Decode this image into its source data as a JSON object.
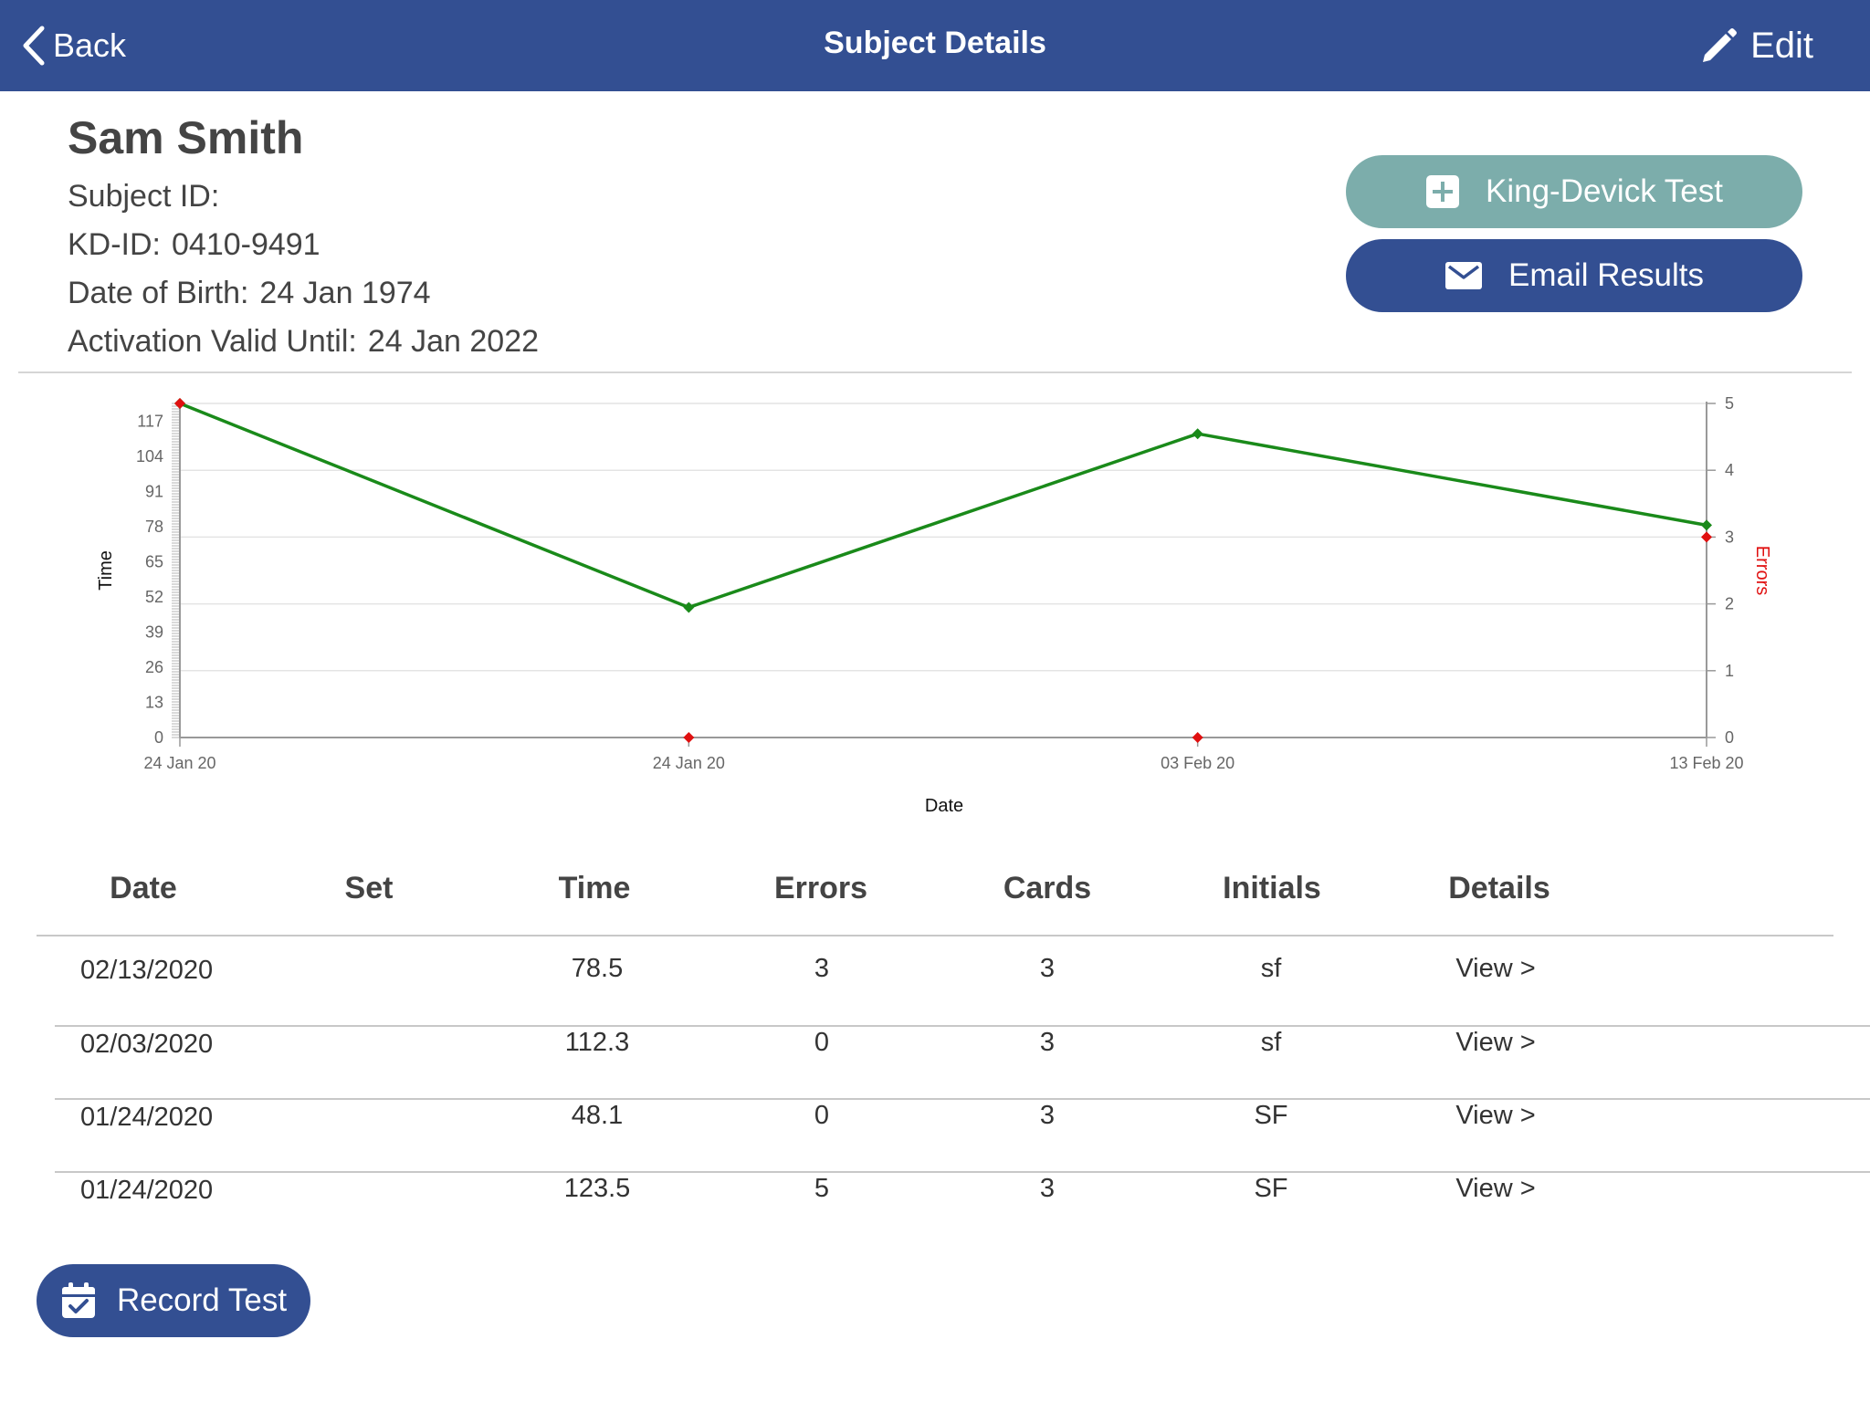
{
  "navbar": {
    "back_label": "Back",
    "title": "Subject Details",
    "edit_label": "Edit",
    "bg_color": "#334f92"
  },
  "subject": {
    "name": "Sam Smith",
    "subject_id_label": "Subject ID:",
    "subject_id_value": "",
    "kd_id_label": "KD-ID:",
    "kd_id_value": "0410-9491",
    "dob_label": "Date of Birth:",
    "dob_value": "24 Jan 1974",
    "activation_label": "Activation Valid Until:",
    "activation_value": "24 Jan 2022"
  },
  "actions": {
    "king_devick_label": "King-Devick Test",
    "email_label": "Email Results",
    "record_label": "Record Test"
  },
  "chart_data": {
    "type": "line",
    "xlabel": "Date",
    "ylabel": "Time",
    "y2label": "Errors",
    "x_tick_labels": [
      "24 Jan 20",
      "24 Jan 20",
      "03 Feb 20",
      "13 Feb 20"
    ],
    "y_ticks": [
      0,
      13,
      26,
      39,
      52,
      65,
      78,
      91,
      104,
      117
    ],
    "y_range": [
      0,
      123.5
    ],
    "y2_ticks": [
      0,
      1,
      2,
      3,
      4,
      5
    ],
    "y2_range": [
      0,
      5
    ],
    "grid": true,
    "series": [
      {
        "name": "Time",
        "axis": "left",
        "color": "#1a8a1a",
        "values": [
          123.5,
          48.1,
          112.3,
          78.5
        ]
      },
      {
        "name": "Errors",
        "axis": "right",
        "color": "#e01010",
        "values": [
          5,
          0,
          0,
          3
        ]
      }
    ]
  },
  "table": {
    "headers": [
      "Date",
      "Set",
      "Time",
      "Errors",
      "Cards",
      "Initials",
      "Details"
    ],
    "rows": [
      {
        "date": "02/13/2020",
        "set": "",
        "time": "78.5",
        "errors": "3",
        "cards": "3",
        "initials": "sf",
        "details": "View >"
      },
      {
        "date": "02/03/2020",
        "set": "",
        "time": "112.3",
        "errors": "0",
        "cards": "3",
        "initials": "sf",
        "details": "View >"
      },
      {
        "date": "01/24/2020",
        "set": "",
        "time": "48.1",
        "errors": "0",
        "cards": "3",
        "initials": "SF",
        "details": "View >"
      },
      {
        "date": "01/24/2020",
        "set": "",
        "time": "123.5",
        "errors": "5",
        "cards": "3",
        "initials": "SF",
        "details": "View >"
      }
    ]
  }
}
